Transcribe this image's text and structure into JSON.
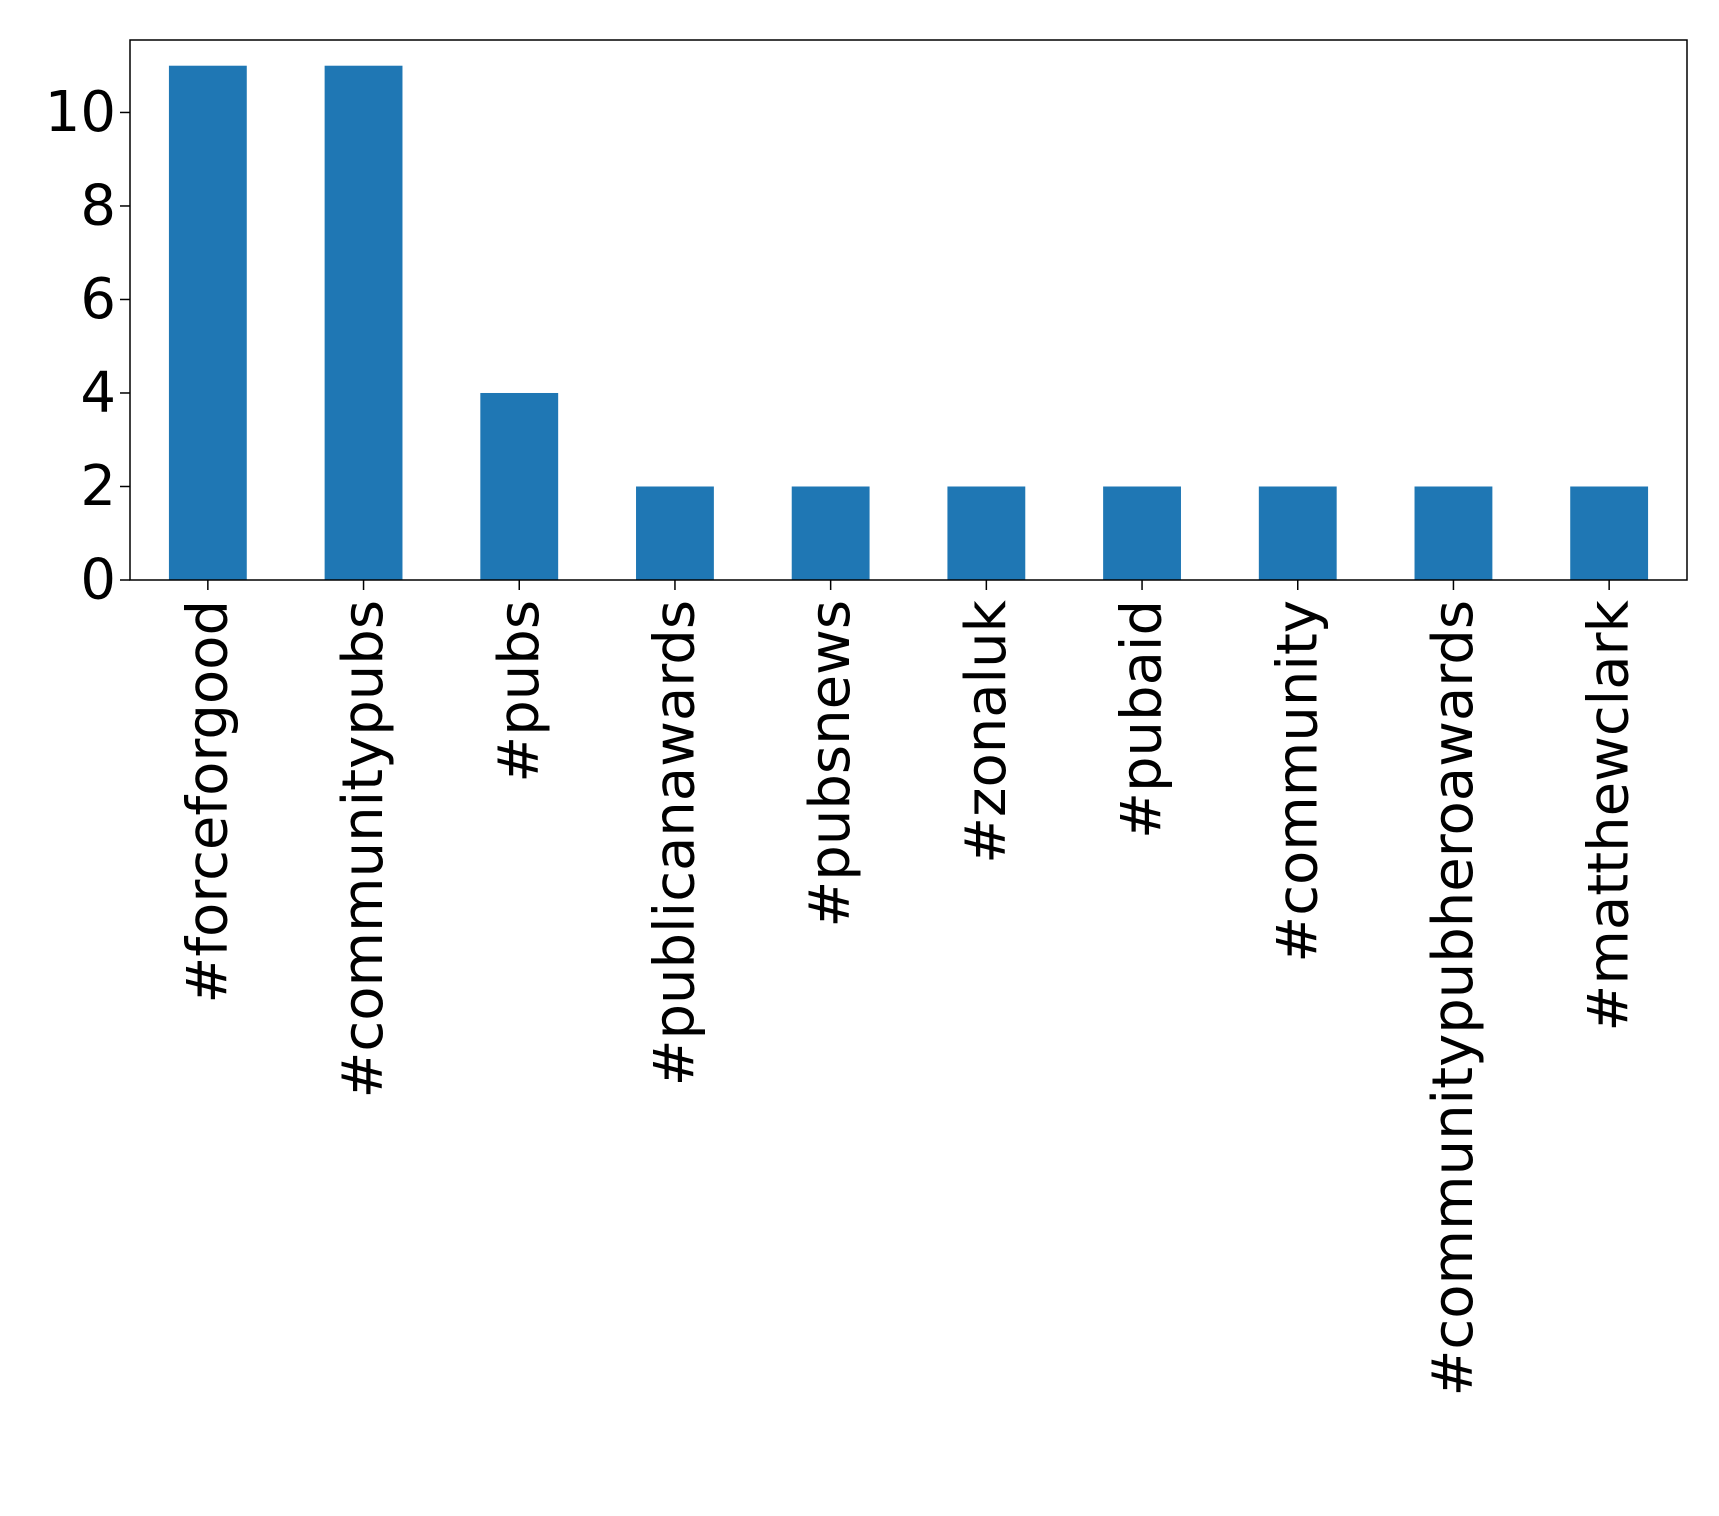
{
  "chart_data": {
    "type": "bar",
    "categories": [
      "#forceforgood",
      "#communitypubs",
      "#pubs",
      "#publicanawards",
      "#pubsnews",
      "#zonaluk",
      "#pubaid",
      "#community",
      "#communitypubheroawards",
      "#matthewclark"
    ],
    "values": [
      11,
      11,
      4,
      2,
      2,
      2,
      2,
      2,
      2,
      2
    ],
    "title": "",
    "xlabel": "",
    "ylabel": "",
    "ylim": [
      0,
      11.55
    ],
    "yticks": [
      0,
      2,
      4,
      6,
      8,
      10
    ],
    "bar_color": "#1f77b4",
    "grid": false,
    "legend": "none"
  }
}
